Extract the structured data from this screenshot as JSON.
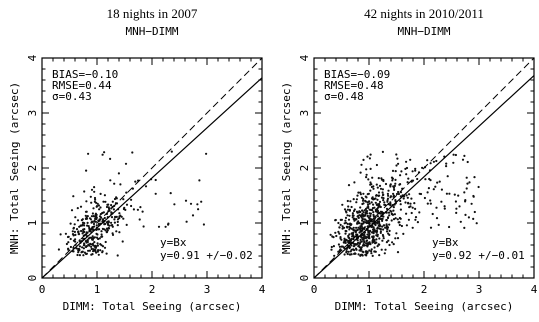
{
  "chart_data": [
    {
      "type": "scatter",
      "title": "18 nights in 2007",
      "subtitle": "MNH−DIMM",
      "xlabel": "DIMM: Total Seeing (arcsec)",
      "ylabel": "MNH: Total Seeing (arcsec)",
      "xlim": [
        0,
        4
      ],
      "ylim": [
        0,
        4
      ],
      "x_ticks": [
        "0",
        "1",
        "2",
        "3",
        "4"
      ],
      "y_ticks": [
        "0",
        "1",
        "2",
        "3",
        "4"
      ],
      "stats": [
        "BIAS=−0.10",
        "RMSE=0.44",
        "σ=0.43"
      ],
      "fit": {
        "label": "y=Bx",
        "text": "y=0.91  +/−0.02",
        "slope": 0.91
      },
      "reference_line": {
        "style": "dashed",
        "slope": 1
      },
      "scatter": {
        "n": 420,
        "center": [
          0.95,
          0.85
        ],
        "spread": [
          0.25,
          0.3
        ]
      }
    },
    {
      "type": "scatter",
      "title": "42 nights in 2010/2011",
      "subtitle": "MNH−DIMM",
      "xlabel": "DIMM: Total Seeing (arcsec)",
      "ylabel": "MNH: Total Seeing (arcsec)",
      "xlim": [
        0,
        4
      ],
      "ylim": [
        0,
        4
      ],
      "x_ticks": [
        "0",
        "1",
        "2",
        "3",
        "4"
      ],
      "y_ticks": [
        "0",
        "1",
        "2",
        "3",
        "4"
      ],
      "stats": [
        "BIAS=−0.09",
        "RMSE=0.48",
        "σ=0.48"
      ],
      "fit": {
        "label": "y=Bx",
        "text": "y=0.92  +/−0.01",
        "slope": 0.92
      },
      "reference_line": {
        "style": "dashed",
        "slope": 1
      },
      "scatter": {
        "n": 900,
        "center": [
          0.95,
          0.9
        ],
        "spread": [
          0.3,
          0.35
        ]
      }
    }
  ]
}
